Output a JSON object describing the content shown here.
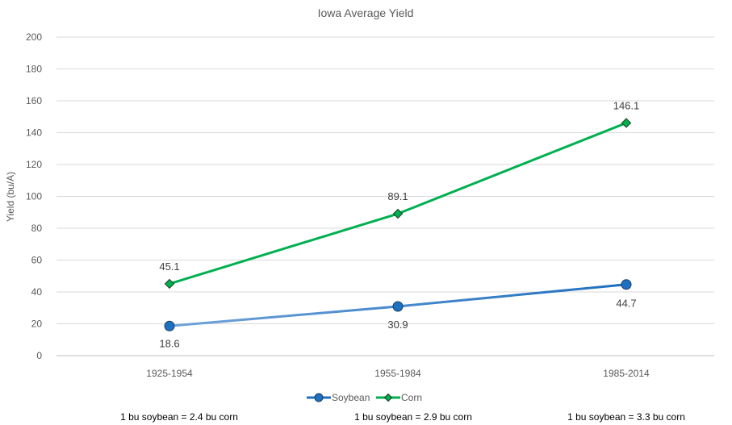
{
  "chart_data": {
    "type": "line",
    "title": "Iowa  Average Yield",
    "xlabel": "",
    "ylabel": "Yield (bu/A)",
    "categories": [
      "1925-1954",
      "1955-1984",
      "1985-2014"
    ],
    "ylim": [
      0,
      200
    ],
    "yticks": [
      0,
      20,
      40,
      60,
      80,
      100,
      120,
      140,
      160,
      180,
      200
    ],
    "grid": true,
    "legend_position": "bottom",
    "series": [
      {
        "name": "Soybean",
        "values": [
          18.6,
          30.9,
          44.7
        ],
        "labels": [
          "18.6",
          "30.9",
          "44.7"
        ],
        "marker": "circle",
        "color": "#1F6FBF",
        "color_light": "#6FA3D9"
      },
      {
        "name": "Corn",
        "values": [
          45.1,
          89.1,
          146.1
        ],
        "labels": [
          "45.1",
          "89.1",
          "146.1"
        ],
        "marker": "diamond",
        "color": "#00B050"
      }
    ]
  },
  "notes": [
    "1 bu soybean = 2.4 bu corn",
    "1 bu soybean = 2.9 bu corn",
    "1 bu soybean = 3.3 bu corn"
  ]
}
